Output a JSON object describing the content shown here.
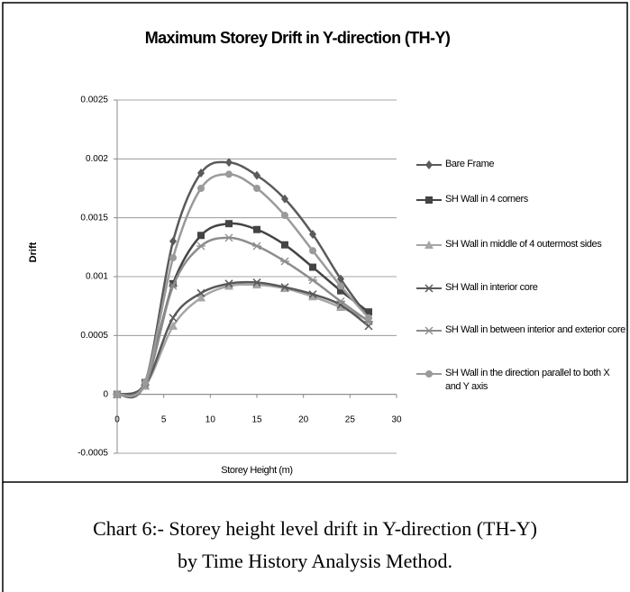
{
  "chart_data": {
    "type": "line",
    "title": "Maximum Storey Drift in Y-direction (TH-Y)",
    "xlabel": "Storey Height (m)",
    "ylabel": "Drift",
    "x": [
      0,
      3,
      6,
      9,
      12,
      15,
      18,
      21,
      24,
      27
    ],
    "xlim": [
      0,
      30
    ],
    "xticks": [
      0,
      5,
      10,
      15,
      20,
      25,
      30
    ],
    "ylim": [
      -0.0005,
      0.0025
    ],
    "yticks": [
      -0.0005,
      0,
      0.0005,
      0.001,
      0.0015,
      0.002,
      0.0025
    ],
    "grid": true,
    "legend": "right",
    "series": [
      {
        "name": "Bare Frame",
        "color": "#5a5a5a",
        "marker": "diamond",
        "values": [
          0,
          0.0001,
          0.0013,
          0.00188,
          0.00197,
          0.00186,
          0.00166,
          0.00136,
          0.00098,
          0.00065
        ]
      },
      {
        "name": "SH Wall in 4 corners",
        "color": "#444444",
        "marker": "square",
        "values": [
          0,
          0.0001,
          0.00094,
          0.00135,
          0.00145,
          0.0014,
          0.00127,
          0.00108,
          0.00088,
          0.0007
        ]
      },
      {
        "name": "SH Wall in middle of 4 outermost sides",
        "color": "#a6a6a6",
        "marker": "triangle",
        "values": [
          0,
          7e-05,
          0.00058,
          0.00082,
          0.00092,
          0.00093,
          0.0009,
          0.00083,
          0.00074,
          0.00063
        ]
      },
      {
        "name": "SH Wall in interior core",
        "color": "#595959",
        "marker": "x",
        "values": [
          0,
          8e-05,
          0.00065,
          0.00086,
          0.00094,
          0.00095,
          0.00091,
          0.00085,
          0.00076,
          0.00058
        ]
      },
      {
        "name": "SH Wall in between interior and exterior core",
        "color": "#8c8c8c",
        "marker": "star",
        "values": [
          0,
          8e-05,
          0.00092,
          0.00126,
          0.00133,
          0.00126,
          0.00113,
          0.00097,
          0.00079,
          0.00062
        ]
      },
      {
        "name": "SH Wall in the direction parallel to both X and Y axis",
        "color": "#9a9a9a",
        "marker": "circle",
        "values": [
          0,
          0.0001,
          0.00116,
          0.00175,
          0.00187,
          0.00175,
          0.00152,
          0.00122,
          0.00092,
          0.00065
        ]
      }
    ]
  },
  "caption": [
    "Chart 6:- Storey height level drift in Y-direction (TH-Y)",
    "by Time History Analysis Method."
  ]
}
